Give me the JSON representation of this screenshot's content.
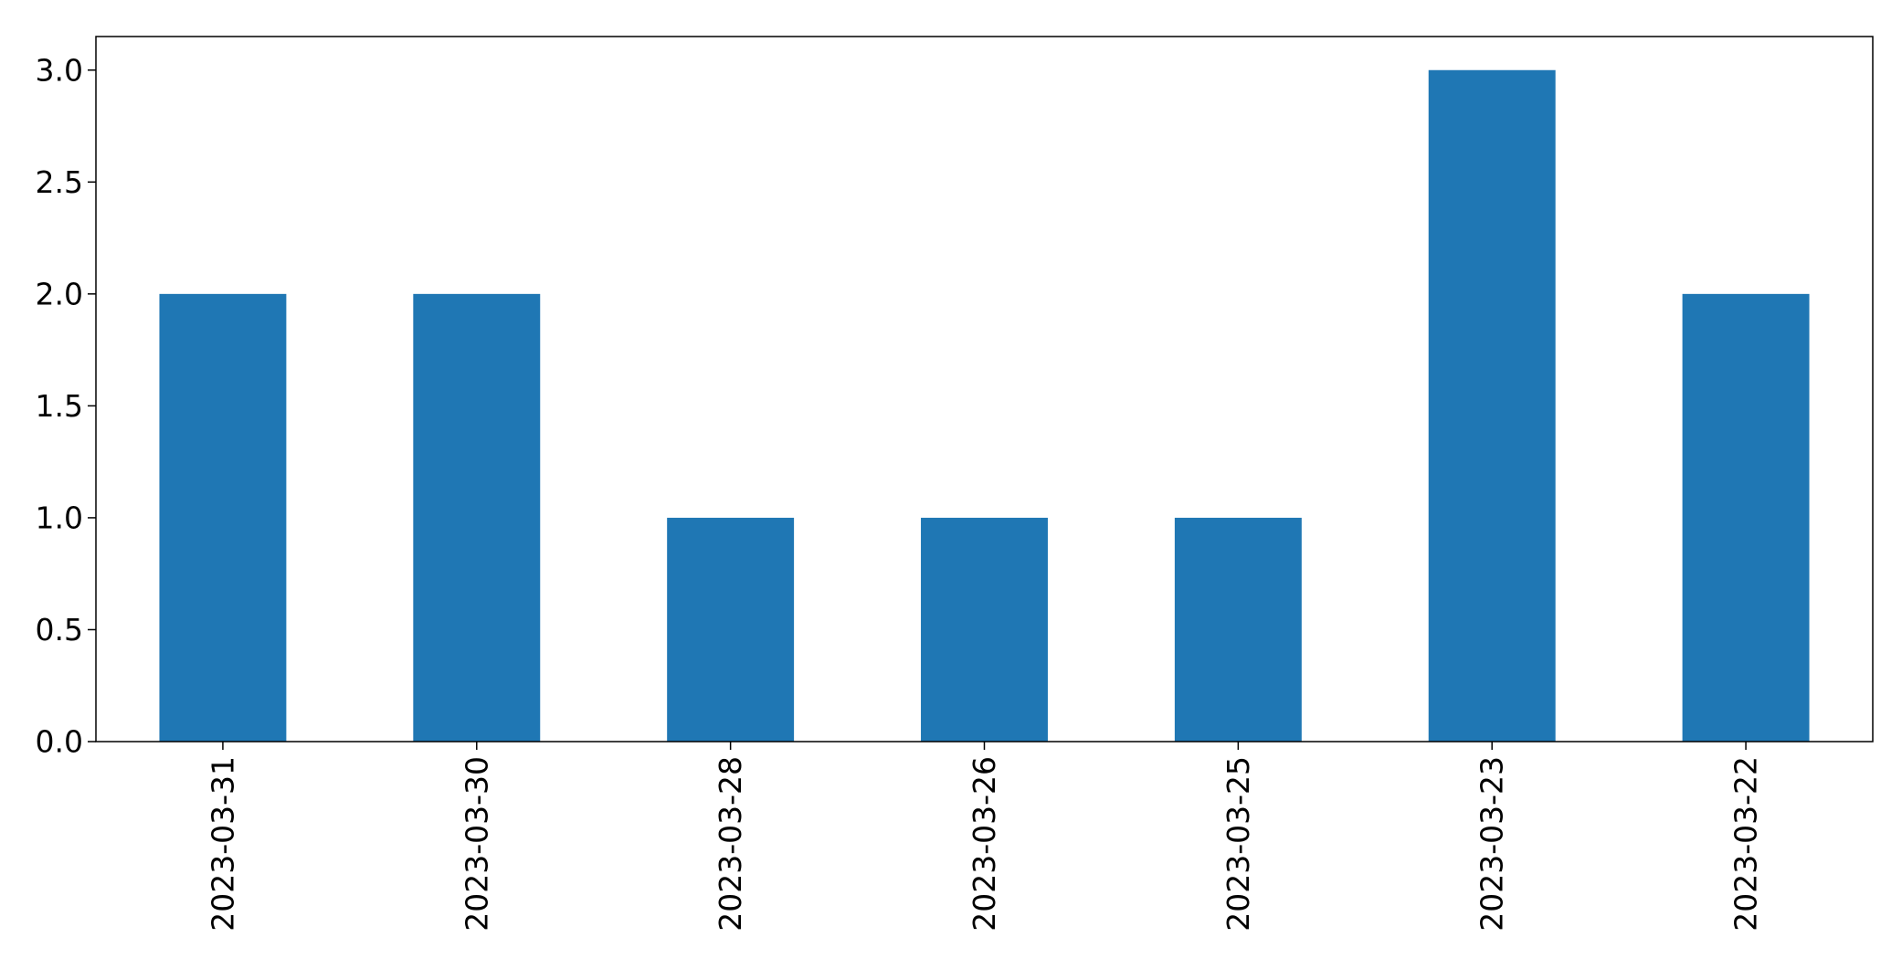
{
  "chart_data": {
    "type": "bar",
    "title": "",
    "xlabel": "",
    "ylabel": "",
    "categories": [
      "2023-03-31",
      "2023-03-30",
      "2023-03-28",
      "2023-03-26",
      "2023-03-25",
      "2023-03-23",
      "2023-03-22"
    ],
    "values": [
      2,
      2,
      1,
      1,
      1,
      3,
      2
    ],
    "ylim": [
      0,
      3.15
    ],
    "yticks": [
      "0.0",
      "0.5",
      "1.0",
      "1.5",
      "2.0",
      "2.5",
      "3.0"
    ],
    "grid": false,
    "legend": "none",
    "bar_color": "#1f77b4",
    "axis_color": "#000000"
  }
}
